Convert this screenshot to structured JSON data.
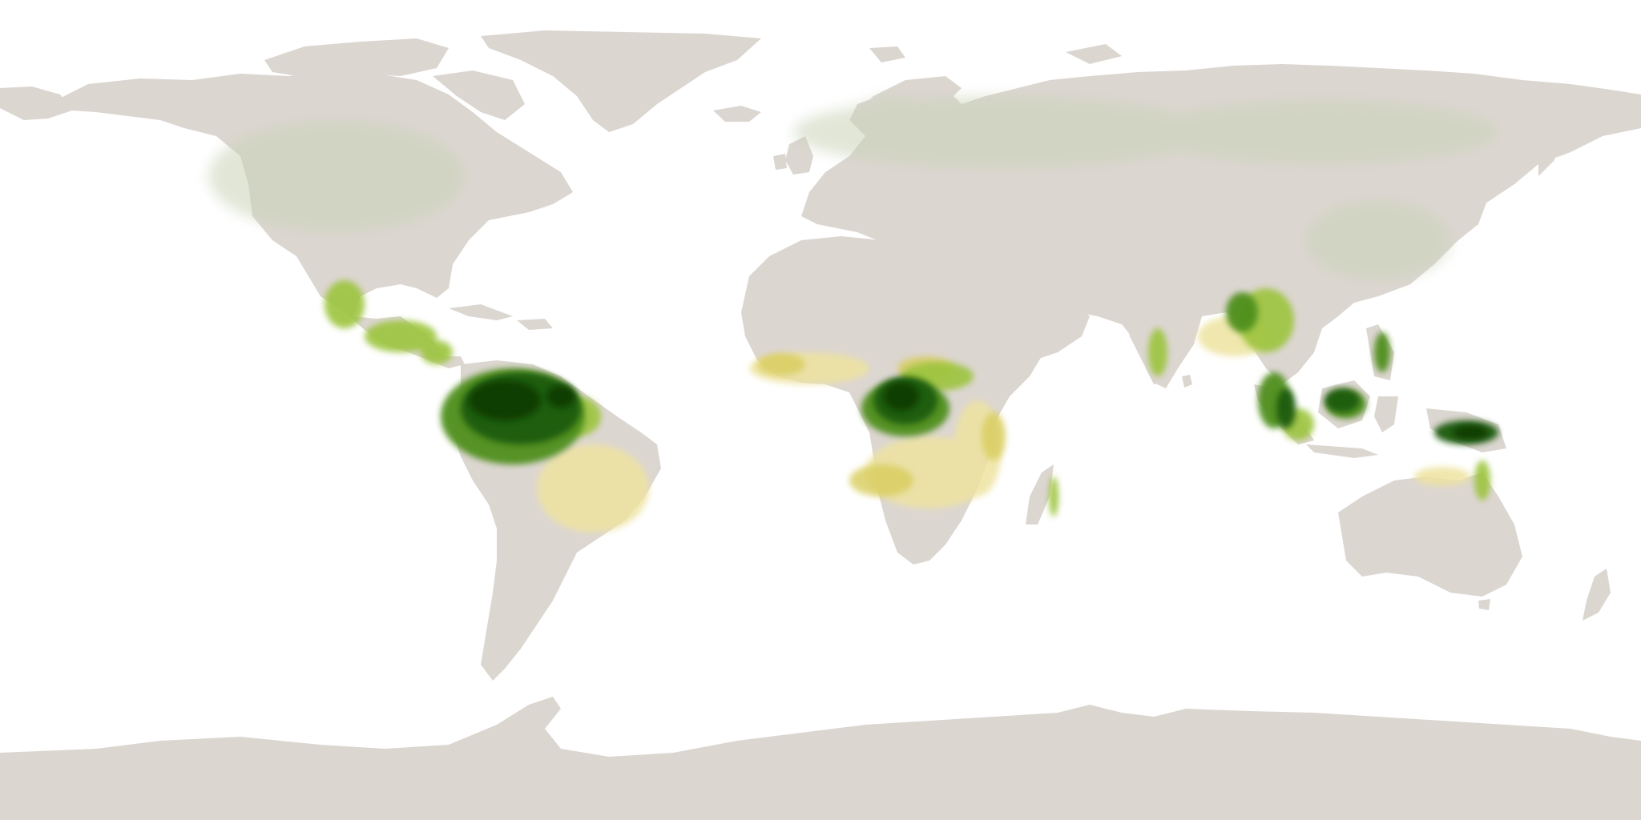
{
  "map": {
    "projection": "equirectangular",
    "view": "world",
    "colors": {
      "ocean": "#ffffff",
      "land": "#dcd6d1",
      "temperate_tint": "#c9d3b8",
      "savanna_light": "#eee3a0",
      "savanna": "#d8cc5c",
      "forest_light": "#9cc43c",
      "forest_mid": "#4f8f1a",
      "forest_dense": "#1f5c08",
      "forest_darkest": "#0c3a02"
    },
    "legend_visible": false,
    "labels_visible": false
  }
}
